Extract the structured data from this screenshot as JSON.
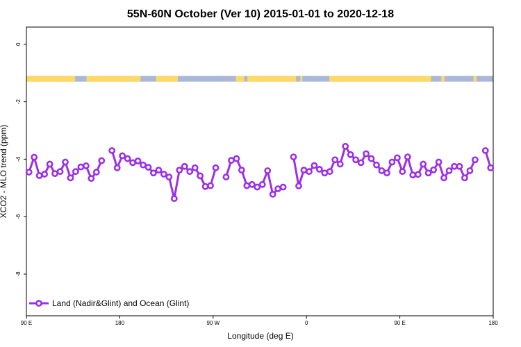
{
  "chart_data": {
    "type": "line",
    "title": "55N-60N October (Ver 10)   2015-01-01 to 2020-12-18",
    "xlabel": "Longitude (deg E)",
    "ylabel": "XCO2 - MLO trend (ppm)",
    "xlim": [
      90,
      540
    ],
    "ylim": [
      -9.45,
      0.6
    ],
    "x_ticks": [
      {
        "value": 90,
        "label": "90 E"
      },
      {
        "value": 180,
        "label": "180"
      },
      {
        "value": 270,
        "label": "90 W"
      },
      {
        "value": 360,
        "label": "0"
      },
      {
        "value": 450,
        "label": "90 E"
      },
      {
        "value": 540,
        "label": "180"
      }
    ],
    "y_ticks": [
      {
        "value": 0,
        "label": "0"
      },
      {
        "value": -2,
        "label": "-2"
      },
      {
        "value": -4,
        "label": "-4"
      },
      {
        "value": -6,
        "label": "-6"
      },
      {
        "value": -8,
        "label": "-8"
      }
    ],
    "grid": false,
    "legend": {
      "position": "bottom-left",
      "entries": [
        "Land (Nadir&Glint) and Ocean (Glint)"
      ]
    },
    "land_ocean_strip": {
      "y_range": [
        -1.1,
        -1.3
      ],
      "land_color": "#FFD966",
      "ocean_color": "#A8B8D8",
      "land_intervals": [
        [
          90,
          137
        ],
        [
          148,
          200
        ],
        [
          215,
          236
        ],
        [
          292,
          300
        ],
        [
          303,
          350
        ],
        [
          354,
          356
        ],
        [
          382,
          480
        ],
        [
          490,
          493
        ],
        [
          521,
          524
        ]
      ]
    },
    "series": [
      {
        "name": "Land (Nadir&Glint) and Ocean (Glint)",
        "color": "#9B30E8",
        "x": [
          92.5,
          97.5,
          102.5,
          107.5,
          112.5,
          117.5,
          122.5,
          127.5,
          132.5,
          137.5,
          142.5,
          147.5,
          152.5,
          157.5,
          162.5,
          167.5,
          172.5,
          177.5,
          182.5,
          187.5,
          192.5,
          197.5,
          202.5,
          207.5,
          212.5,
          217.5,
          222.5,
          227.5,
          232.5,
          237.5,
          242.5,
          247.5,
          252.5,
          257.5,
          262.5,
          267.5,
          272.5,
          277.5,
          282.5,
          287.5,
          292.5,
          297.5,
          302.5,
          307.5,
          312.5,
          317.5,
          322.5,
          327.5,
          332.5,
          337.5,
          342.5,
          347.5,
          352.5,
          357.5,
          362.5,
          367.5,
          372.5,
          377.5,
          382.5,
          387.5,
          392.5,
          397.5,
          402.5,
          407.5,
          412.5,
          417.5,
          422.5,
          427.5,
          432.5,
          437.5,
          442.5,
          447.5,
          452.5,
          457.5,
          462.5,
          467.5,
          472.5,
          477.5,
          482.5,
          487.5,
          492.5,
          497.5,
          502.5,
          507.5,
          512.5,
          517.5,
          522.5,
          527.5,
          532.5,
          537.5
        ],
        "values": [
          -4.45,
          -3.93,
          -4.57,
          -4.52,
          -4.17,
          -4.5,
          -4.43,
          -4.1,
          -4.65,
          -4.43,
          -4.27,
          -4.23,
          -4.67,
          -4.45,
          -4.05,
          null,
          -3.7,
          -4.3,
          -3.88,
          -3.98,
          -4.12,
          -4.06,
          -4.2,
          -4.28,
          -4.48,
          -4.38,
          -4.52,
          -4.62,
          -5.37,
          -4.38,
          -4.25,
          -4.43,
          -4.3,
          -4.58,
          -4.95,
          -4.92,
          -4.3,
          null,
          -4.62,
          -4.04,
          -3.98,
          -4.38,
          -4.92,
          -4.88,
          -4.97,
          -4.88,
          -4.4,
          -5.22,
          -5.03,
          -4.97,
          null,
          -3.92,
          -4.93,
          -4.38,
          -4.43,
          -4.22,
          -4.35,
          -4.48,
          -4.43,
          -4.02,
          -4.17,
          -3.55,
          -3.84,
          -4.02,
          -4.12,
          -3.81,
          -3.98,
          -4.2,
          -4.4,
          -4.48,
          -4.1,
          -3.95,
          -4.43,
          -3.92,
          -4.55,
          -4.53,
          -4.17,
          -4.48,
          -4.37,
          -4.1,
          -4.65,
          -4.4,
          -4.25,
          -4.25,
          -4.65,
          -4.4,
          -4.02,
          null,
          -3.7,
          -4.3
        ]
      }
    ]
  }
}
